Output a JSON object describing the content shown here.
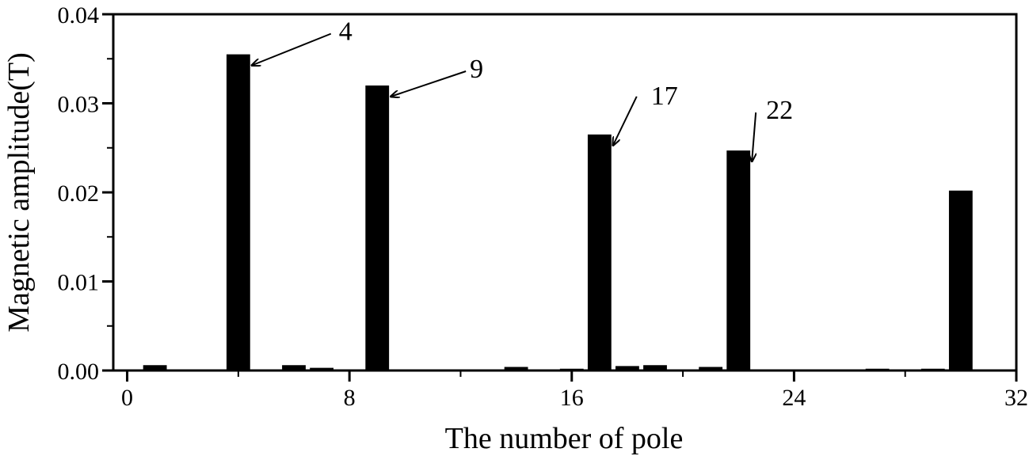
{
  "chart_data": {
    "type": "bar",
    "title": "",
    "xlabel": "The number of pole",
    "ylabel": "Magnetic amplitude(T)",
    "xlim": [
      -0.5,
      32
    ],
    "ylim": [
      0,
      0.04
    ],
    "xticks": [
      0,
      8,
      16,
      24,
      32
    ],
    "xtick_labels": [
      "0",
      "8",
      "16",
      "24",
      "32"
    ],
    "yticks": [
      0,
      0.01,
      0.02,
      0.03,
      0.04
    ],
    "ytick_labels": [
      "0.00",
      "0.01",
      "0.02",
      "0.03",
      "0.04"
    ],
    "grid": false,
    "bar_color": "#000000",
    "x": [
      1,
      4,
      5,
      6,
      7,
      9,
      14,
      16,
      17,
      18,
      19,
      21,
      22,
      27,
      29,
      30
    ],
    "values": [
      0.0006,
      0.0355,
      0.0001,
      0.0006,
      0.0003,
      0.032,
      0.0004,
      0.0002,
      0.0265,
      0.0005,
      0.0006,
      0.0004,
      0.0247,
      0.0002,
      0.0002,
      0.0202
    ],
    "annotations": [
      {
        "text": "4",
        "x": 4,
        "y": 0.0355
      },
      {
        "text": "9",
        "x": 9,
        "y": 0.032
      },
      {
        "text": "17",
        "x": 17,
        "y": 0.0265
      },
      {
        "text": "22",
        "x": 22,
        "y": 0.0247
      }
    ]
  }
}
